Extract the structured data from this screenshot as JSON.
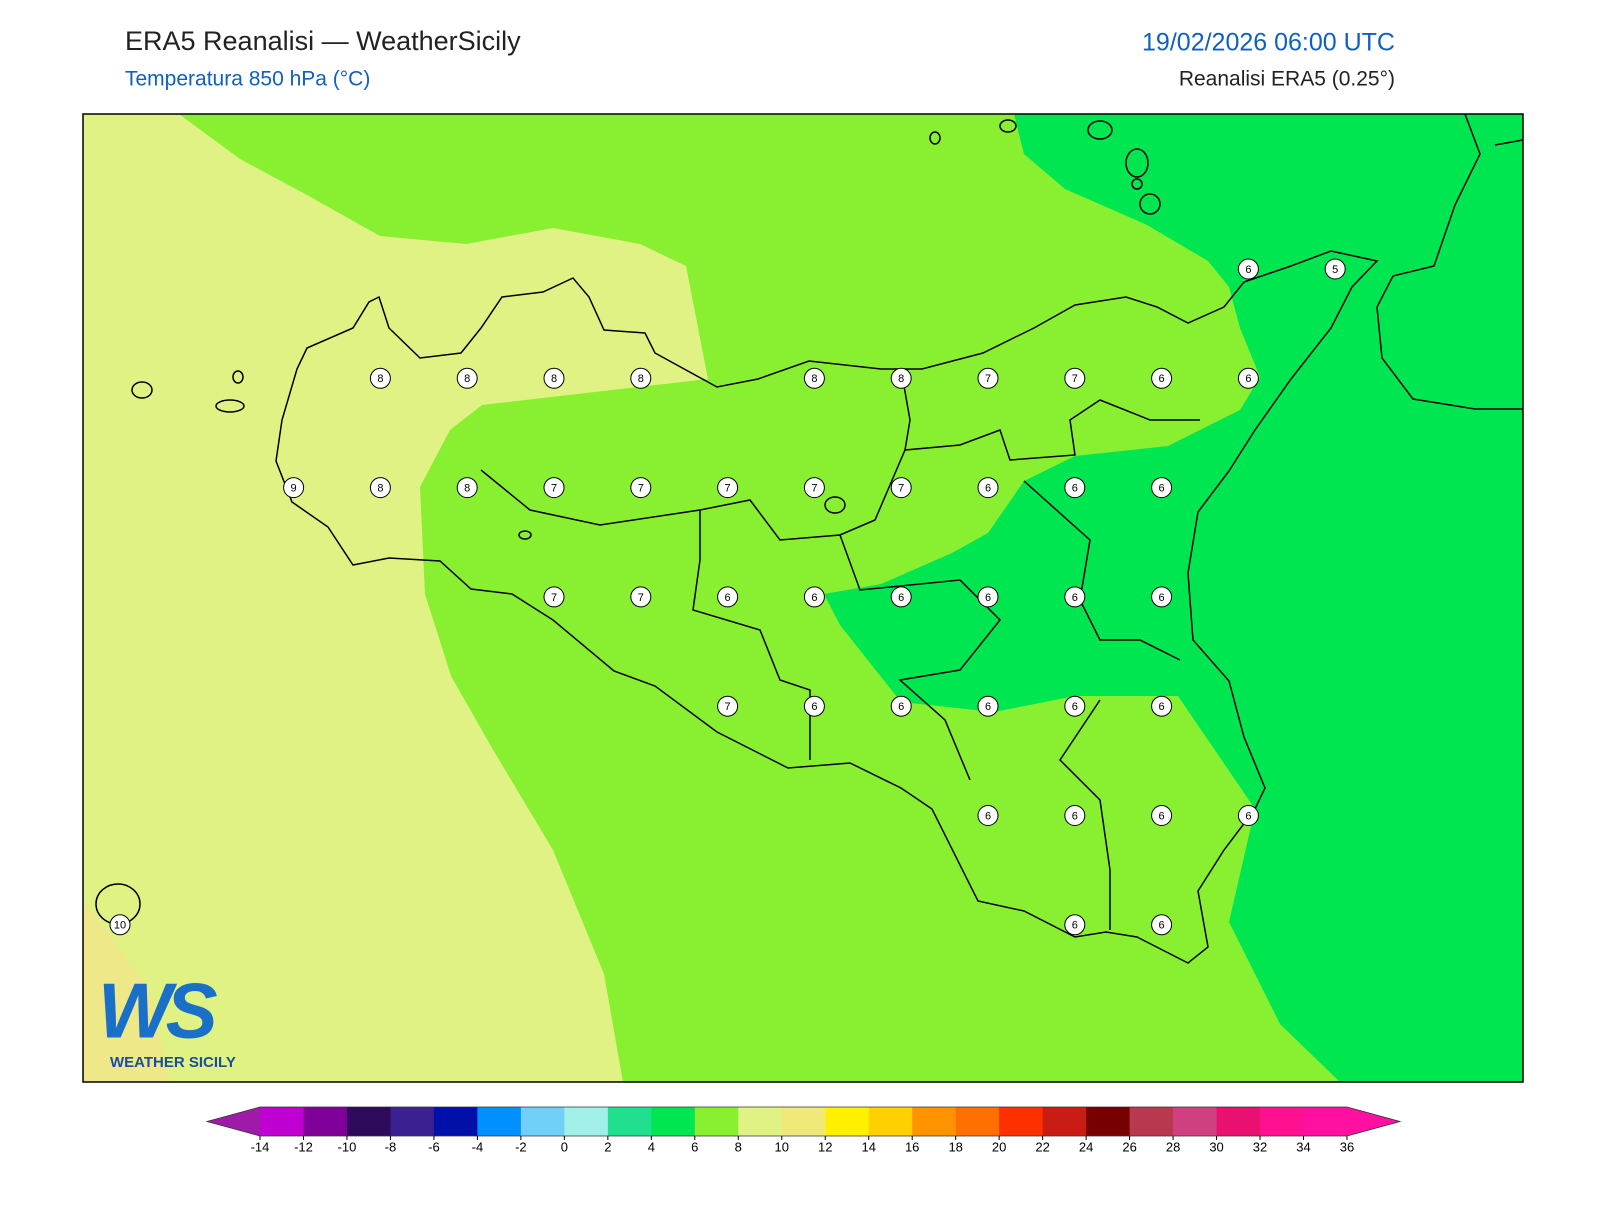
{
  "header": {
    "title": "ERA5 Reanalisi — WeatherSicily",
    "subtitle": "Temperatura 850 hPa (°C)",
    "datetime": "19/02/2026 06:00 UTC",
    "source": "Reanalisi ERA5 (0.25°)"
  },
  "map": {
    "grid": [
      [
        null,
        null,
        null,
        null,
        null,
        null,
        null,
        null,
        null,
        null,
        null,
        null,
        null,
        6,
        5
      ],
      [
        null,
        null,
        null,
        8,
        8,
        8,
        8,
        null,
        8,
        8,
        7,
        7,
        6,
        6,
        null
      ],
      [
        null,
        null,
        9,
        8,
        8,
        7,
        7,
        7,
        7,
        7,
        6,
        6,
        6,
        null,
        null
      ],
      [
        null,
        null,
        null,
        null,
        null,
        7,
        7,
        6,
        6,
        6,
        6,
        6,
        6,
        null,
        null
      ],
      [
        null,
        null,
        null,
        null,
        null,
        null,
        null,
        7,
        6,
        6,
        6,
        6,
        6,
        null,
        null
      ],
      [
        null,
        null,
        null,
        null,
        null,
        null,
        null,
        null,
        null,
        null,
        6,
        6,
        6,
        6,
        null
      ],
      [
        10,
        null,
        null,
        null,
        null,
        null,
        null,
        null,
        null,
        null,
        null,
        6,
        6,
        null,
        null
      ]
    ]
  },
  "logo": {
    "mark": "WS",
    "name": "WEATHER SICILY"
  },
  "colorbar": {
    "ticks": [
      -14,
      -12,
      -10,
      -8,
      -6,
      -4,
      -2,
      0,
      2,
      4,
      6,
      8,
      10,
      12,
      14,
      16,
      18,
      20,
      22,
      24,
      26,
      28,
      30,
      32,
      34,
      36
    ],
    "under": "#a01aa8",
    "over": "#ff10a0",
    "colors": [
      "#c000d0",
      "#80009a",
      "#2e0a5c",
      "#3a2090",
      "#0010a8",
      "#0090ff",
      "#70d0f8",
      "#a0f0e8",
      "#20e090",
      "#00e650",
      "#88f030",
      "#e0f283",
      "#f0e878",
      "#fff000",
      "#ffd000",
      "#ff9400",
      "#ff7000",
      "#ff3000",
      "#c81c14",
      "#780000",
      "#b83850",
      "#d04080",
      "#e81070",
      "#ff1090",
      "#ff10a0"
    ]
  }
}
